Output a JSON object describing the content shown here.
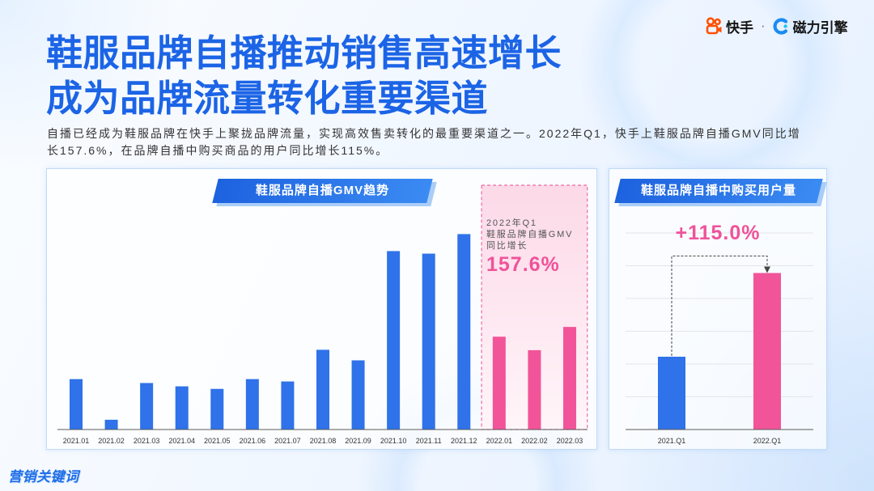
{
  "brand": {
    "kuaishou_icon": "kuaishou-logo-icon",
    "kuaishou": "快手",
    "separator": "·",
    "cili_icon": "cili-engine-logo-icon",
    "cili": "磁力引擎"
  },
  "title": {
    "line1": "鞋服品牌自播推动销售高速增长",
    "line2": "成为品牌流量转化重要渠道"
  },
  "summary": {
    "line1": "自播已经成为鞋服品牌在快手上聚拢品牌流量，实现高效售卖转化的最重要渠道之一。2022年Q1，快手上鞋服品牌自播GMV同比增",
    "line2": "长157.6%，在品牌自播中购买商品的用户同比增长115%。"
  },
  "footer": {
    "logo_text": "营销关键词"
  },
  "colors": {
    "title_blue": "#1c64e6",
    "bar_blue": "#2f72e9",
    "bar_pink": "#f25499",
    "highlight_pink": "#ec6aa2"
  },
  "chart_data": [
    {
      "type": "bar",
      "title": "鞋服品牌自播GMV趋势",
      "categories": [
        "2021.01",
        "2021.02",
        "2021.03",
        "2021.04",
        "2021.05",
        "2021.06",
        "2021.07",
        "2021.08",
        "2021.09",
        "2021.10",
        "2021.11",
        "2021.12",
        "2022.01",
        "2022.02",
        "2022.03"
      ],
      "values": [
        25.8,
        5.0,
        23.8,
        22.1,
        20.8,
        25.8,
        24.6,
        40.8,
        35.4,
        91.3,
        90.0,
        100,
        47.5,
        40.6,
        52.5
      ],
      "bar_colors": [
        "#2f72e9",
        "#2f72e9",
        "#2f72e9",
        "#2f72e9",
        "#2f72e9",
        "#2f72e9",
        "#2f72e9",
        "#2f72e9",
        "#2f72e9",
        "#2f72e9",
        "#2f72e9",
        "#2f72e9",
        "#f25499",
        "#f25499",
        "#f25499"
      ],
      "ylim": [
        0,
        125
      ],
      "grid": false,
      "legend": "none",
      "highlight_categories": [
        "2022.01",
        "2022.02",
        "2022.03"
      ],
      "highlight_color": "#ec6aa2",
      "annotation": {
        "lines": [
          "2022年Q1",
          "鞋服品牌自播GMV",
          "同比增长"
        ],
        "value": "157.6%"
      }
    },
    {
      "type": "bar",
      "title": "鞋服品牌自播中购买用户量",
      "categories": [
        "2021.Q1",
        "2022.Q1"
      ],
      "values": [
        100,
        215
      ],
      "bar_colors": [
        "#2f72e9",
        "#f25499"
      ],
      "ylim": [
        0,
        270
      ],
      "grid": true,
      "legend": "none",
      "annotation": "+115.0%"
    }
  ]
}
